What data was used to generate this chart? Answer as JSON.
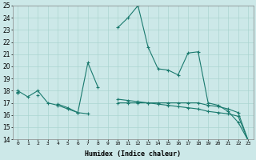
{
  "xlabel": "Humidex (Indice chaleur)",
  "x": [
    0,
    1,
    2,
    3,
    4,
    5,
    6,
    7,
    8,
    9,
    10,
    11,
    12,
    13,
    14,
    15,
    16,
    17,
    18,
    19,
    20,
    21,
    22,
    23
  ],
  "line1": [
    18.0,
    17.5,
    18.0,
    17.0,
    16.8,
    16.5,
    16.2,
    20.3,
    18.3,
    null,
    23.2,
    24.0,
    25.0,
    21.6,
    19.8,
    19.7,
    19.3,
    21.1,
    21.2,
    17.0,
    16.8,
    16.3,
    15.4,
    13.9
  ],
  "line2": [
    17.9,
    null,
    17.6,
    null,
    16.9,
    16.6,
    16.2,
    16.1,
    null,
    null,
    null,
    null,
    null,
    null,
    null,
    null,
    null,
    null,
    null,
    null,
    null,
    null,
    null,
    null
  ],
  "line3": [
    17.8,
    null,
    null,
    null,
    null,
    null,
    null,
    null,
    null,
    null,
    17.0,
    17.0,
    17.0,
    17.0,
    17.0,
    17.0,
    17.0,
    17.0,
    17.0,
    16.8,
    16.7,
    16.5,
    16.2,
    13.9
  ],
  "line4": [
    17.8,
    null,
    null,
    null,
    null,
    null,
    null,
    null,
    null,
    null,
    17.3,
    17.2,
    17.1,
    17.0,
    16.9,
    16.8,
    16.7,
    16.6,
    16.5,
    16.3,
    16.2,
    16.1,
    15.9,
    13.9
  ],
  "color": "#1a7a6e",
  "bg_color": "#cce8e8",
  "grid_color": "#aad4d0",
  "ylim": [
    14,
    25
  ],
  "xlim_min": -0.5,
  "xlim_max": 23.5,
  "yticks": [
    14,
    15,
    16,
    17,
    18,
    19,
    20,
    21,
    22,
    23,
    24,
    25
  ],
  "xticks": [
    0,
    1,
    2,
    3,
    4,
    5,
    6,
    7,
    8,
    9,
    10,
    11,
    12,
    13,
    14,
    15,
    16,
    17,
    18,
    19,
    20,
    21,
    22,
    23
  ],
  "ytick_fontsize": 5.5,
  "xtick_fontsize": 4.5,
  "xlabel_fontsize": 6.0,
  "lw": 0.8,
  "markersize": 3.0
}
